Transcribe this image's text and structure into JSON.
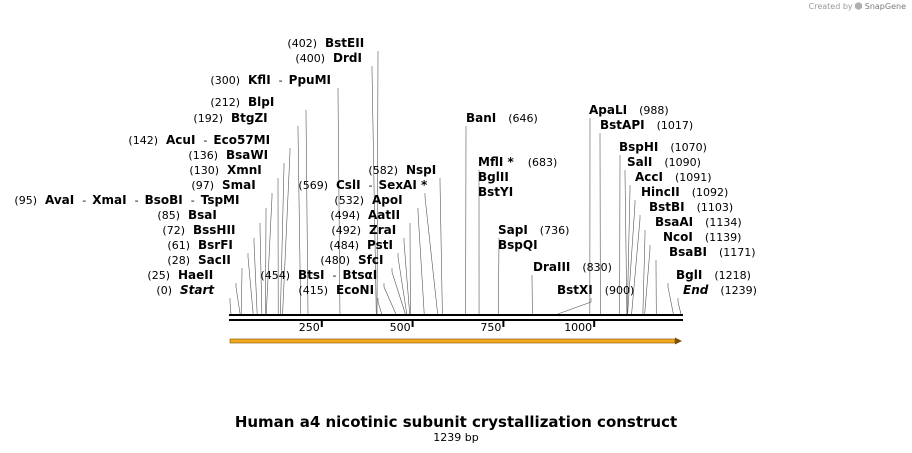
{
  "credit": {
    "created_by": "Created by",
    "brand": "SnapGene",
    "icon": "snapgene-logo-icon"
  },
  "title": "Human a4 nicotinic subunit crystallization construct",
  "subtitle": "1239 bp",
  "length": 1239,
  "ticks": [
    {
      "value": 250,
      "label": "250"
    },
    {
      "value": 500,
      "label": "500"
    },
    {
      "value": 750,
      "label": "750"
    },
    {
      "value": 1000,
      "label": "1000"
    }
  ],
  "feature": {
    "name": "orf-arrow",
    "color": "#f2a91f"
  },
  "sites": [
    {
      "pos": "(0)",
      "enzymes": [
        {
          "name": "Start",
          "italic": true
        }
      ],
      "site": 0
    },
    {
      "pos": "(25)",
      "enzymes": [
        {
          "name": "HaeII"
        }
      ],
      "site": 25
    },
    {
      "pos": "(28)",
      "enzymes": [
        {
          "name": "SacII"
        }
      ],
      "site": 28
    },
    {
      "pos": "(61)",
      "enzymes": [
        {
          "name": "BsrFI"
        }
      ],
      "site": 61
    },
    {
      "pos": "(72)",
      "enzymes": [
        {
          "name": "BssHII"
        }
      ],
      "site": 72
    },
    {
      "pos": "(85)",
      "enzymes": [
        {
          "name": "BsaI"
        }
      ],
      "site": 85
    },
    {
      "pos": "(95)",
      "enzymes": [
        {
          "name": "AvaI"
        },
        {
          "name": "XmaI"
        },
        {
          "name": "BsoBI"
        },
        {
          "name": "TspMI"
        }
      ],
      "site": 95
    },
    {
      "pos": "(97)",
      "enzymes": [
        {
          "name": "SmaI"
        }
      ],
      "site": 97
    },
    {
      "pos": "(130)",
      "enzymes": [
        {
          "name": "XmnI"
        }
      ],
      "site": 130
    },
    {
      "pos": "(136)",
      "enzymes": [
        {
          "name": "BsaWI"
        }
      ],
      "site": 136
    },
    {
      "pos": "(142)",
      "enzymes": [
        {
          "name": "AcuI"
        },
        {
          "name": "Eco57MI"
        }
      ],
      "site": 142
    },
    {
      "pos": "(192)",
      "enzymes": [
        {
          "name": "BtgZI"
        }
      ],
      "site": 192
    },
    {
      "pos": "(212)",
      "enzymes": [
        {
          "name": "BlpI"
        }
      ],
      "site": 212
    },
    {
      "pos": "(300)",
      "enzymes": [
        {
          "name": "KflI"
        },
        {
          "name": "PpuMI"
        }
      ],
      "site": 300
    },
    {
      "pos": "(400)",
      "enzymes": [
        {
          "name": "DrdI"
        }
      ],
      "site": 400
    },
    {
      "pos": "(402)",
      "enzymes": [
        {
          "name": "BstEII"
        }
      ],
      "site": 402
    },
    {
      "pos": "(415)",
      "enzymes": [
        {
          "name": "EcoNI"
        }
      ],
      "site": 415
    },
    {
      "pos": "(454)",
      "enzymes": [
        {
          "name": "BtsI"
        },
        {
          "name": "BtsαI"
        }
      ],
      "site": 454
    },
    {
      "pos": "(480)",
      "enzymes": [
        {
          "name": "SfcI"
        }
      ],
      "site": 480
    },
    {
      "pos": "(484)",
      "enzymes": [
        {
          "name": "PstI"
        }
      ],
      "site": 484
    },
    {
      "pos": "(492)",
      "enzymes": [
        {
          "name": "ZraI"
        }
      ],
      "site": 492
    },
    {
      "pos": "(494)",
      "enzymes": [
        {
          "name": "AatII"
        }
      ],
      "site": 494
    },
    {
      "pos": "(532)",
      "enzymes": [
        {
          "name": "ApoI"
        }
      ],
      "site": 532
    },
    {
      "pos": "(569)",
      "enzymes": [
        {
          "name": "CslI"
        },
        {
          "name": "SexAI *"
        }
      ],
      "site": 569
    },
    {
      "pos": "(582)",
      "enzymes": [
        {
          "name": "NspI"
        }
      ],
      "site": 582
    },
    {
      "pos": "(646)",
      "enzymes": [
        {
          "name": "BanI"
        }
      ],
      "site": 646
    },
    {
      "pos": "(683)",
      "enzymes": [
        {
          "name": "MflI *"
        },
        {
          "name": "BglII"
        },
        {
          "name": "BstYI"
        }
      ],
      "site": 683
    },
    {
      "pos": "(736)",
      "enzymes": [
        {
          "name": "SapI"
        },
        {
          "name": "BspQI"
        }
      ],
      "site": 736
    },
    {
      "pos": "(830)",
      "enzymes": [
        {
          "name": "DraIII"
        }
      ],
      "site": 830
    },
    {
      "pos": "(900)",
      "enzymes": [
        {
          "name": "BstXI"
        }
      ],
      "site": 900
    },
    {
      "pos": "(988)",
      "enzymes": [
        {
          "name": "ApaLI"
        }
      ],
      "site": 988
    },
    {
      "pos": "(1017)",
      "enzymes": [
        {
          "name": "BstAPI"
        }
      ],
      "site": 1017
    },
    {
      "pos": "(1070)",
      "enzymes": [
        {
          "name": "BspHI"
        }
      ],
      "site": 1070
    },
    {
      "pos": "(1090)",
      "enzymes": [
        {
          "name": "SalI"
        }
      ],
      "site": 1090
    },
    {
      "pos": "(1091)",
      "enzymes": [
        {
          "name": "AccI"
        }
      ],
      "site": 1091
    },
    {
      "pos": "(1092)",
      "enzymes": [
        {
          "name": "HincII"
        }
      ],
      "site": 1092
    },
    {
      "pos": "(1103)",
      "enzymes": [
        {
          "name": "BstBI"
        }
      ],
      "site": 1103
    },
    {
      "pos": "(1134)",
      "enzymes": [
        {
          "name": "BsaAI"
        }
      ],
      "site": 1134
    },
    {
      "pos": "(1139)",
      "enzymes": [
        {
          "name": "NcoI"
        }
      ],
      "site": 1139
    },
    {
      "pos": "(1171)",
      "enzymes": [
        {
          "name": "BsaBI"
        }
      ],
      "site": 1171
    },
    {
      "pos": "(1218)",
      "enzymes": [
        {
          "name": "BglI"
        }
      ],
      "site": 1218
    },
    {
      "pos": "(1239)",
      "enzymes": [
        {
          "name": "End",
          "italic": true
        }
      ],
      "site": 1239
    }
  ]
}
